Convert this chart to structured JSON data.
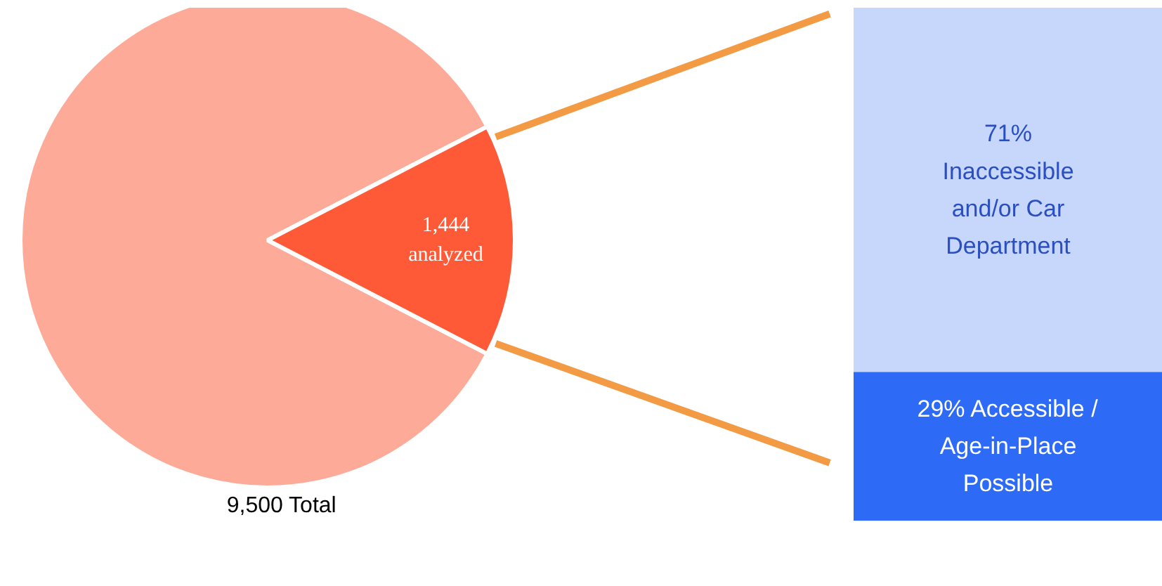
{
  "chart_data": [
    {
      "type": "pie",
      "categories": [
        null,
        null
      ],
      "values": [
        8056,
        1444
      ],
      "colors": [
        "#fdab98",
        "#fe5a38"
      ],
      "value_labels": [
        null,
        "1,444 analyzed"
      ],
      "annotations": [
        "9,500 Total"
      ]
    },
    {
      "type": "bar",
      "stacked": true,
      "categories": [
        null
      ],
      "ylim": [
        0,
        100
      ],
      "tick_labels": false,
      "grid": false,
      "series": [
        {
          "color": "#2d6af6",
          "values": [
            29
          ],
          "value_labels": [
            "29% Accessible / Age-in-Place Possible"
          ]
        },
        {
          "color": "#c6d7fb",
          "values": [
            71
          ],
          "value_labels": [
            "71% Inaccessible and/or Car Department"
          ]
        }
      ]
    }
  ]
}
